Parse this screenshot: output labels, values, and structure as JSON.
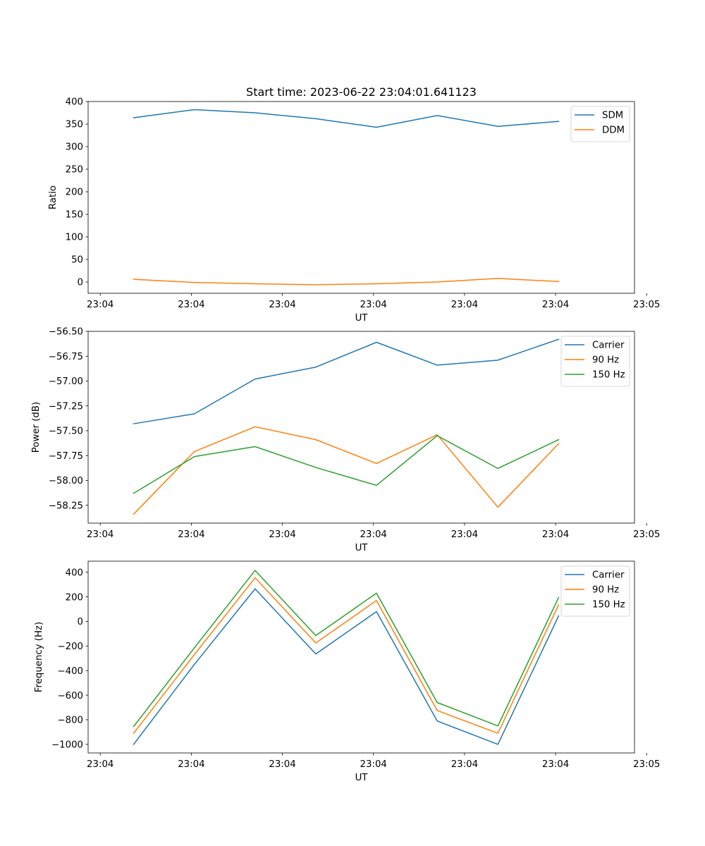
{
  "chart_data": [
    {
      "type": "line",
      "title": "Start time: 2023-06-22 23:04:01.641123",
      "xlabel": "UT",
      "ylabel": "Ratio",
      "x": [
        1,
        2,
        3,
        4,
        5,
        6,
        7,
        8
      ],
      "xlim": [
        0.25,
        9.25
      ],
      "xticks": [
        0.45,
        1.95,
        3.45,
        4.95,
        6.45,
        7.95,
        9.45
      ],
      "xtick_labels": [
        "23:04",
        "23:04",
        "23:04",
        "23:04",
        "23:04",
        "23:04",
        "23:05"
      ],
      "ylim": [
        -25,
        400
      ],
      "yticks": [
        0,
        50,
        100,
        150,
        200,
        250,
        300,
        350,
        400
      ],
      "ytick_labels": [
        "0",
        "50",
        "100",
        "150",
        "200",
        "250",
        "300",
        "350",
        "400"
      ],
      "legend": "upper right",
      "grid": false,
      "series": [
        {
          "name": "SDM",
          "color": "#1f77b4",
          "values": [
            364,
            382,
            375,
            362,
            343,
            369,
            345,
            356
          ]
        },
        {
          "name": "DDM",
          "color": "#ff7f0e",
          "values": [
            6,
            -1,
            -4,
            -6,
            -4,
            0,
            8,
            1
          ]
        }
      ]
    },
    {
      "type": "line",
      "xlabel": "UT",
      "ylabel": "Power (dB)",
      "x": [
        1,
        2,
        3,
        4,
        5,
        6,
        7,
        8
      ],
      "xlim": [
        0.25,
        9.25
      ],
      "xticks": [
        0.45,
        1.95,
        3.45,
        4.95,
        6.45,
        7.95,
        9.45
      ],
      "xtick_labels": [
        "23:04",
        "23:04",
        "23:04",
        "23:04",
        "23:04",
        "23:04",
        "23:05"
      ],
      "ylim": [
        -58.43,
        -56.5
      ],
      "yticks": [
        -58.25,
        -58.0,
        -57.75,
        -57.5,
        -57.25,
        -57.0,
        -56.75,
        -56.5
      ],
      "ytick_labels": [
        "−58.25",
        "−58.00",
        "−57.75",
        "−57.50",
        "−57.25",
        "−57.00",
        "−56.75",
        "−56.50"
      ],
      "legend": "upper right",
      "grid": false,
      "series": [
        {
          "name": "Carrier",
          "color": "#1f77b4",
          "values": [
            -57.43,
            -57.33,
            -56.98,
            -56.86,
            -56.61,
            -56.84,
            -56.79,
            -56.58
          ]
        },
        {
          "name": "90 Hz",
          "color": "#ff7f0e",
          "values": [
            -58.34,
            -57.71,
            -57.46,
            -57.59,
            -57.83,
            -57.54,
            -58.27,
            -57.63
          ]
        },
        {
          "name": "150 Hz",
          "color": "#2ca02c",
          "values": [
            -58.13,
            -57.76,
            -57.66,
            -57.87,
            -58.05,
            -57.55,
            -57.88,
            -57.59
          ]
        }
      ]
    },
    {
      "type": "line",
      "xlabel": "UT",
      "ylabel": "Frequency (Hz)",
      "x": [
        1,
        2,
        3,
        4,
        5,
        6,
        7,
        8
      ],
      "xlim": [
        0.25,
        9.25
      ],
      "xticks": [
        0.45,
        1.95,
        3.45,
        4.95,
        6.45,
        7.95,
        9.45
      ],
      "xtick_labels": [
        "23:04",
        "23:04",
        "23:04",
        "23:04",
        "23:04",
        "23:04",
        "23:05"
      ],
      "ylim": [
        -1070,
        490
      ],
      "yticks": [
        -1000,
        -800,
        -600,
        -400,
        -200,
        0,
        200,
        400
      ],
      "ytick_labels": [
        "−1000",
        "−800",
        "−600",
        "−400",
        "−200",
        "0",
        "200",
        "400"
      ],
      "legend": "upper right",
      "grid": false,
      "series": [
        {
          "name": "Carrier",
          "color": "#1f77b4",
          "values": [
            -1000,
            -350,
            265,
            -265,
            80,
            -810,
            -1000,
            45
          ]
        },
        {
          "name": "90 Hz",
          "color": "#ff7f0e",
          "values": [
            -910,
            -270,
            355,
            -175,
            170,
            -725,
            -910,
            135
          ]
        },
        {
          "name": "150 Hz",
          "color": "#2ca02c",
          "values": [
            -855,
            -215,
            415,
            -115,
            230,
            -660,
            -850,
            195
          ]
        }
      ]
    }
  ]
}
